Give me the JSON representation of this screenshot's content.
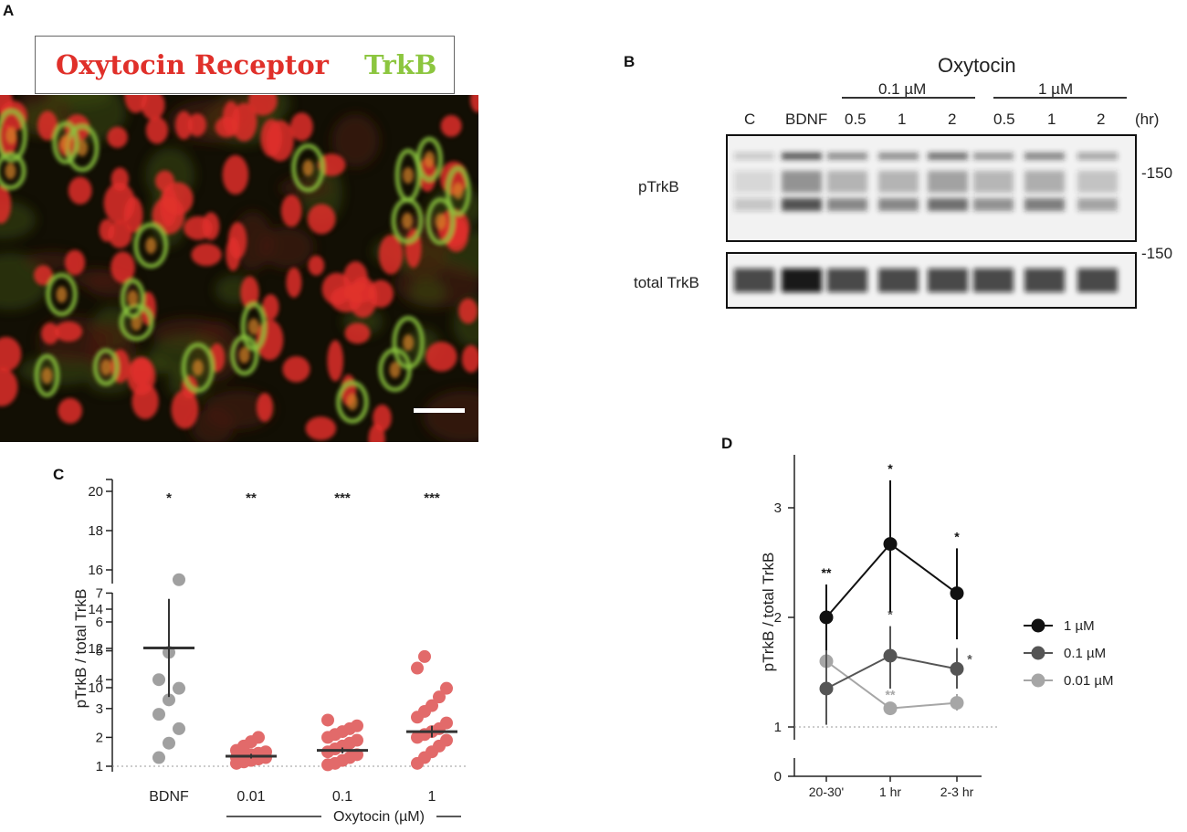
{
  "panel_a": {
    "letter": "A",
    "label_receptor": "Oxytocin Receptor",
    "label_trkb": "TrkB",
    "colors": {
      "receptor": "#e0302a",
      "trkb": "#8cc63f",
      "background": "#120f04"
    }
  },
  "panel_b": {
    "letter": "B",
    "treatment": "Oxytocin",
    "dose_low": "0.1 µM",
    "dose_high": "1 µM",
    "lanes": [
      "C",
      "BDNF",
      "0.5",
      "1",
      "2",
      "0.5",
      "1",
      "2"
    ],
    "time_unit": "(hr)",
    "row_top": "pTrkB",
    "row_bottom": "total TrkB",
    "marker_top": "-150",
    "marker_bottom": "-150"
  },
  "chart_data": [
    {
      "id": "C",
      "letter": "C",
      "type": "scatter",
      "ylabel": "pTrkB / total TrkB",
      "xlabel": "Oxytocin (µM)",
      "categories": [
        "BDNF",
        "0.01",
        "0.1",
        "1"
      ],
      "yticks": [
        "1",
        "2",
        "3",
        "4",
        "5",
        "6",
        "7",
        "10",
        "12",
        "14",
        "16",
        "18",
        "20"
      ],
      "significance": [
        "*",
        "**",
        "***",
        "***"
      ],
      "colors": {
        "BDNF": "#a0a0a0",
        "oxytocin": "#e26a6a",
        "mean_line": "#333333"
      },
      "reference_line": 1,
      "series": [
        {
          "category": "BDNF",
          "points": [
            1.3,
            1.8,
            2.3,
            2.8,
            3.3,
            3.7,
            4.0,
            11.8,
            15.5
          ],
          "mean": 5.1,
          "sem": 1.7
        },
        {
          "category": "0.01",
          "points": [
            1.1,
            1.15,
            1.2,
            1.25,
            1.3,
            1.3,
            1.35,
            1.4,
            1.45,
            1.5,
            1.55,
            1.7,
            1.85,
            2.0
          ],
          "mean": 1.35,
          "sem": 0.08
        },
        {
          "category": "0.1",
          "points": [
            1.05,
            1.1,
            1.2,
            1.3,
            1.4,
            1.5,
            1.6,
            1.7,
            1.8,
            1.9,
            2.0,
            2.1,
            2.2,
            2.3,
            2.4,
            2.6
          ],
          "mean": 1.55,
          "sem": 0.1
        },
        {
          "category": "1",
          "points": [
            1.1,
            1.3,
            1.5,
            1.7,
            1.9,
            2.0,
            2.1,
            2.2,
            2.3,
            2.5,
            2.7,
            2.9,
            3.1,
            3.4,
            3.7,
            4.4,
            4.8
          ],
          "mean": 2.2,
          "sem": 0.2
        }
      ]
    },
    {
      "id": "D",
      "letter": "D",
      "type": "line",
      "ylabel": "pTrkB / total TrkB",
      "categories": [
        "20-30'",
        "1 hr",
        "2-3 hr"
      ],
      "yticks": [
        "0",
        "1",
        "2",
        "3"
      ],
      "reference_line": 1,
      "series": [
        {
          "name": "1 µM",
          "color": "#111111",
          "values": [
            2.0,
            2.67,
            2.22
          ],
          "err_low": [
            1.7,
            2.05,
            1.8
          ],
          "err_high": [
            2.3,
            3.25,
            2.63
          ],
          "stars": [
            "**",
            "*",
            "*"
          ]
        },
        {
          "name": "0.1 µM",
          "color": "#555555",
          "values": [
            1.35,
            1.65,
            1.53
          ],
          "err_low": [
            1.02,
            1.35,
            1.35
          ],
          "err_high": [
            1.7,
            1.92,
            1.72
          ],
          "stars": [
            "",
            "*",
            "*"
          ]
        },
        {
          "name": "0.01 µM",
          "color": "#a6a6a6",
          "values": [
            1.6,
            1.17,
            1.22
          ],
          "err_low": [
            1.4,
            1.12,
            1.15
          ],
          "err_high": [
            1.75,
            1.22,
            1.3
          ],
          "stars": [
            "",
            "**",
            ""
          ]
        }
      ]
    }
  ]
}
